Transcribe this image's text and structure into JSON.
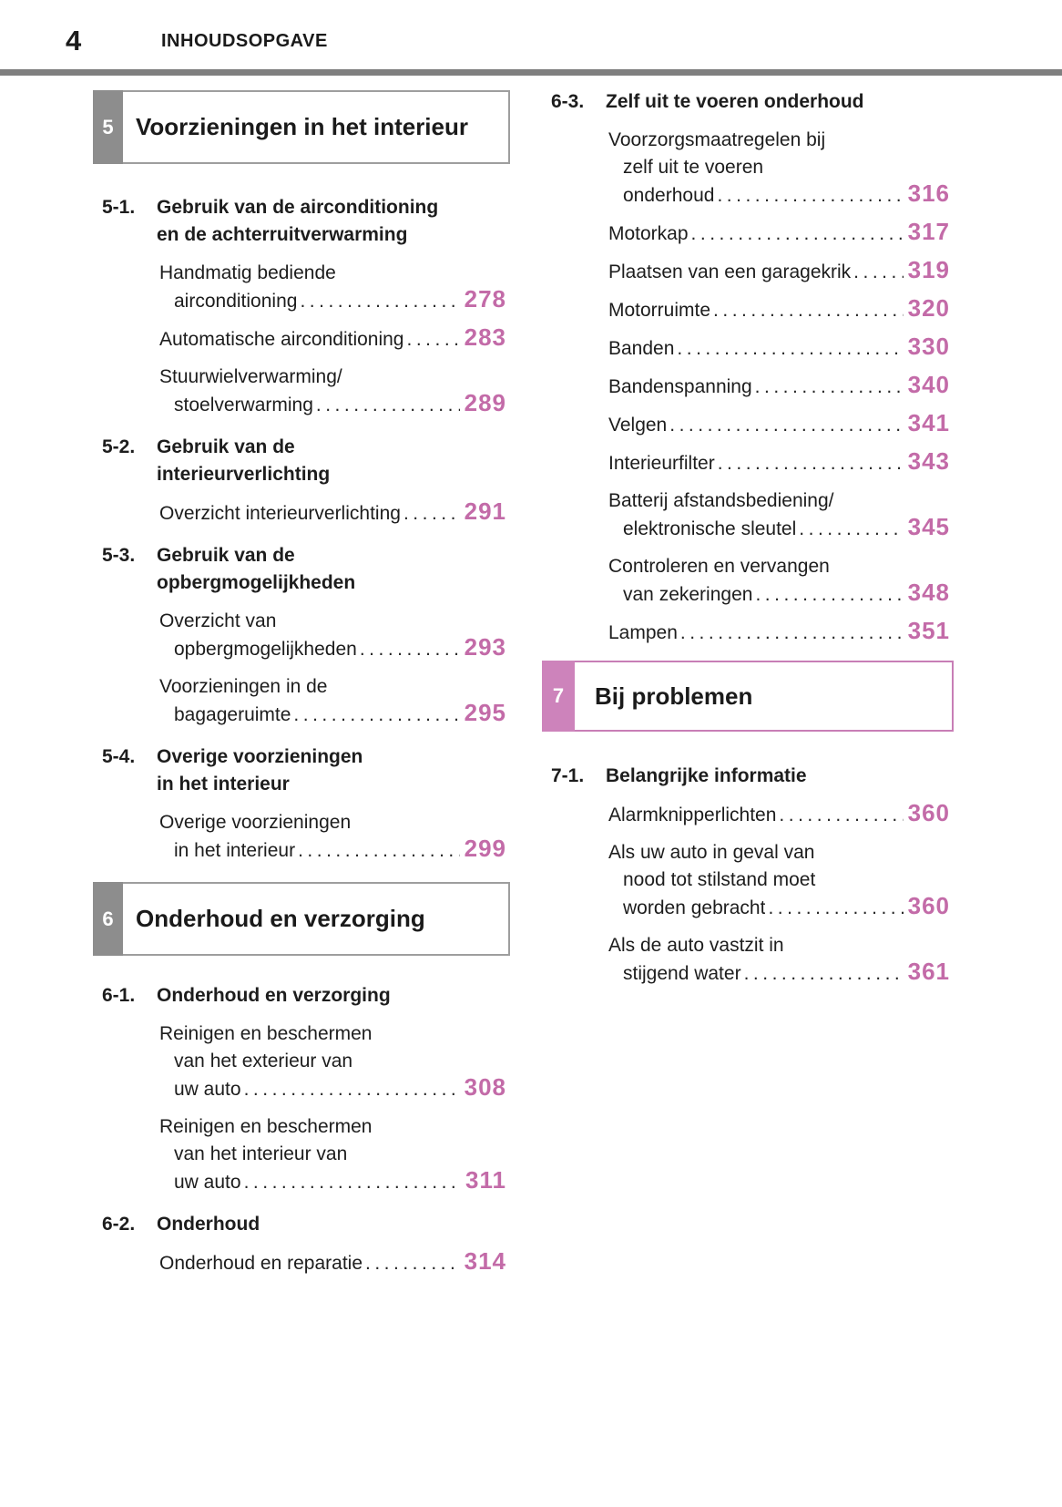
{
  "header": {
    "page_number": "4",
    "title": "INHOUDSOPGAVE"
  },
  "colors": {
    "page_number_pink": "#c36ba8",
    "chapter7_tab_pink": "#cd83bb",
    "chapter7_border_pink": "#c87eb6",
    "chapter_tab_gray": "#8d8d8d",
    "header_rule_gray": "#7f7f7f"
  },
  "left": {
    "chapter5": {
      "tab": "5",
      "title": "Voorzieningen in het interieur"
    },
    "sections": [
      {
        "num": "5-1.",
        "title_lines": [
          "Gebruik van de airconditioning",
          "en de achterruitverwarming"
        ],
        "items": [
          {
            "lines": [
              "Handmatig bediende",
              "airconditioning"
            ],
            "page": "278"
          },
          {
            "lines": [
              "Automatische airconditioning"
            ],
            "page": "283"
          },
          {
            "lines": [
              "Stuurwielverwarming/",
              "stoelverwarming"
            ],
            "page": "289"
          }
        ]
      },
      {
        "num": "5-2.",
        "title_lines": [
          "Gebruik van de",
          "interieurverlichting"
        ],
        "items": [
          {
            "lines": [
              "Overzicht interieurverlichting"
            ],
            "page": "291"
          }
        ]
      },
      {
        "num": "5-3.",
        "title_lines": [
          "Gebruik van de",
          "opbergmogelijkheden"
        ],
        "items": [
          {
            "lines": [
              "Overzicht van",
              "opbergmogelijkheden"
            ],
            "page": "293"
          },
          {
            "lines": [
              "Voorzieningen in de",
              "bagageruimte"
            ],
            "page": "295"
          }
        ]
      },
      {
        "num": "5-4.",
        "title_lines": [
          "Overige voorzieningen",
          "in het interieur"
        ],
        "items": [
          {
            "lines": [
              "Overige voorzieningen",
              "in het interieur"
            ],
            "page": "299"
          }
        ]
      }
    ],
    "chapter6": {
      "tab": "6",
      "title": "Onderhoud en verzorging"
    },
    "sections6": [
      {
        "num": "6-1.",
        "title_lines": [
          "Onderhoud en verzorging"
        ],
        "items": [
          {
            "lines": [
              "Reinigen en beschermen",
              "van het exterieur van",
              "uw auto"
            ],
            "page": "308"
          },
          {
            "lines": [
              "Reinigen en beschermen",
              "van het interieur van",
              "uw auto"
            ],
            "page": "311"
          }
        ]
      },
      {
        "num": "6-2.",
        "title_lines": [
          "Onderhoud"
        ],
        "items": [
          {
            "lines": [
              "Onderhoud en reparatie"
            ],
            "page": "314"
          }
        ]
      }
    ]
  },
  "right": {
    "sections": [
      {
        "num": "6-3.",
        "title_lines": [
          "Zelf uit te voeren onderhoud"
        ],
        "items": [
          {
            "lines": [
              "Voorzorgsmaatregelen bij",
              "zelf uit te voeren",
              "onderhoud"
            ],
            "page": "316"
          },
          {
            "lines": [
              "Motorkap"
            ],
            "page": "317"
          },
          {
            "lines": [
              "Plaatsen van een garagekrik"
            ],
            "page": "319"
          },
          {
            "lines": [
              "Motorruimte"
            ],
            "page": "320"
          },
          {
            "lines": [
              "Banden"
            ],
            "page": "330"
          },
          {
            "lines": [
              "Bandenspanning"
            ],
            "page": "340"
          },
          {
            "lines": [
              "Velgen"
            ],
            "page": "341"
          },
          {
            "lines": [
              "Interieurfilter"
            ],
            "page": "343"
          },
          {
            "lines": [
              "Batterij afstandsbediening/",
              "elektronische sleutel"
            ],
            "page": "345"
          },
          {
            "lines": [
              "Controleren en vervangen",
              "van zekeringen"
            ],
            "page": "348"
          },
          {
            "lines": [
              "Lampen"
            ],
            "page": "351"
          }
        ]
      }
    ],
    "chapter7": {
      "tab": "7",
      "title": "Bij problemen"
    },
    "sections7": [
      {
        "num": "7-1.",
        "title_lines": [
          "Belangrijke informatie"
        ],
        "items": [
          {
            "lines": [
              "Alarmknipperlichten"
            ],
            "page": "360"
          },
          {
            "lines": [
              "Als uw auto in geval van",
              "nood tot stilstand moet",
              "worden gebracht"
            ],
            "page": "360"
          },
          {
            "lines": [
              "Als de auto vastzit in",
              "stijgend water"
            ],
            "page": "361"
          }
        ]
      }
    ]
  }
}
